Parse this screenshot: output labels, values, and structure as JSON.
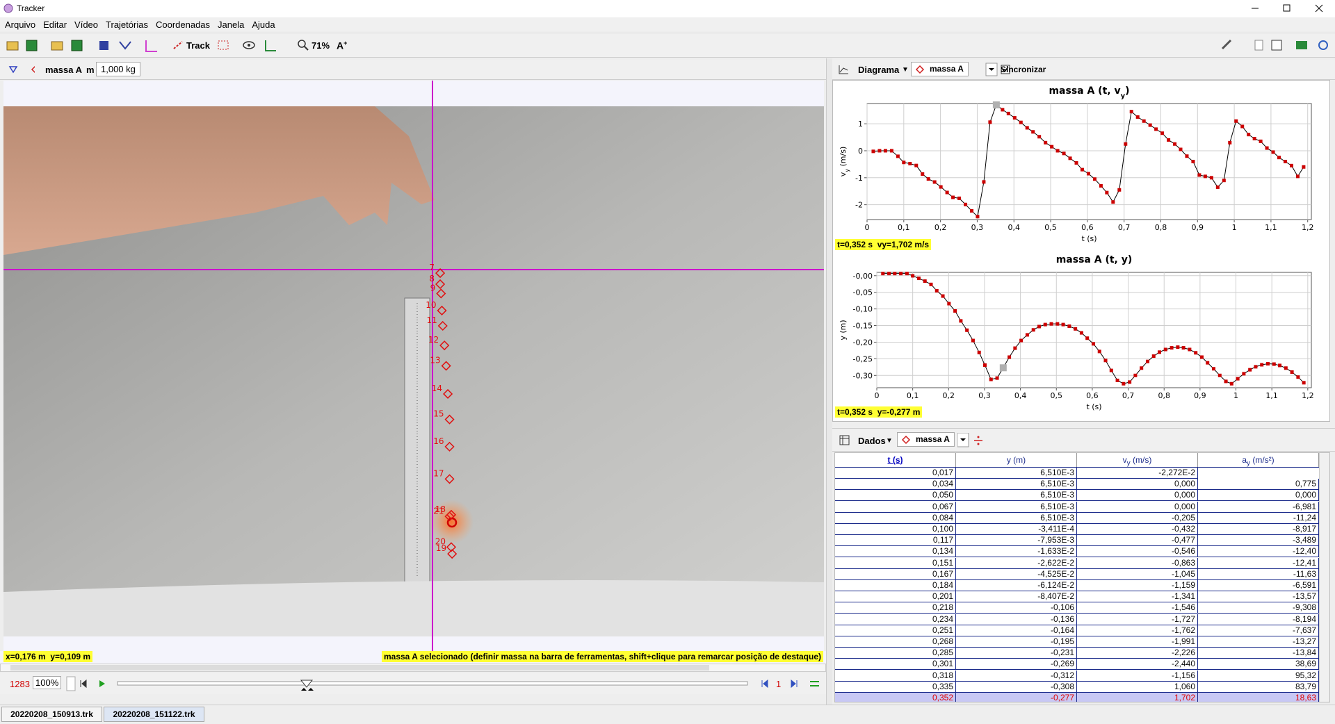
{
  "window": {
    "title": "Tracker"
  },
  "menu": [
    "Arquivo",
    "Editar",
    "Vídeo",
    "Trajetórias",
    "Coordenadas",
    "Janela",
    "Ajuda"
  ],
  "toolbar": {
    "track": "Track",
    "zoom": "71%"
  },
  "track_bar": {
    "track": "massa A",
    "mass_label": "m",
    "mass": "1,000 kg"
  },
  "video": {
    "point_labels": [
      "7",
      "8",
      "9",
      "10",
      "11",
      "12",
      "13",
      "14",
      "15",
      "16",
      "17",
      "18",
      "19",
      "20",
      "21"
    ]
  },
  "status": {
    "coords": "x=0,176 m  y=0,109 m",
    "message": "massa A selecionado (definir massa na barra de ferramentas, shift+clique para remarcar posição de destaque)"
  },
  "player": {
    "frame": "1283",
    "rate": "100%",
    "step": "1"
  },
  "tabs": [
    "20220208_150913.trk",
    "20220208_151122.trk"
  ],
  "plot_panel": {
    "view": "Diagrama",
    "track": "massa A",
    "sync": "Sincronizar"
  },
  "plots": [
    {
      "type": "line",
      "title": [
        "massa A (t, v",
        "y",
        ")"
      ],
      "x_label": "t (s)",
      "y_label": [
        "v",
        "y",
        " (m/s)"
      ],
      "readout": "t=0,352 s  vy=1,702 m/s",
      "color": "#cc0000",
      "line_color": "#000000",
      "grid": true,
      "xlim": [
        0,
        1.21
      ],
      "ylim": [
        -2.55,
        1.75
      ],
      "xticks": [
        0,
        {
          "value": 0.1,
          "label": "0,1"
        },
        {
          "value": 0.2,
          "label": "0,2"
        },
        {
          "value": 0.3,
          "label": "0,3"
        },
        {
          "value": 0.4,
          "label": "0,4"
        },
        {
          "value": 0.5,
          "label": "0,5"
        },
        {
          "value": 0.6,
          "label": "0,6"
        },
        {
          "value": 0.7,
          "label": "0,7"
        },
        {
          "value": 0.8,
          "label": "0,8"
        },
        {
          "value": 0.9,
          "label": "0,9"
        },
        1,
        {
          "value": 1.1,
          "label": "1,1"
        },
        {
          "value": 1.2,
          "label": "1,2"
        }
      ],
      "yticks": [
        1,
        0,
        -1,
        -2
      ],
      "x": [
        0.017,
        0.034,
        0.05,
        0.067,
        0.084,
        0.1,
        0.117,
        0.134,
        0.151,
        0.167,
        0.184,
        0.201,
        0.218,
        0.234,
        0.251,
        0.268,
        0.285,
        0.301,
        0.318,
        0.335,
        0.352,
        0.369,
        0.385,
        0.402,
        0.419,
        0.436,
        0.452,
        0.469,
        0.486,
        0.503,
        0.519,
        0.536,
        0.553,
        0.57,
        0.586,
        0.603,
        0.62,
        0.637,
        0.653,
        0.67,
        0.687,
        0.704,
        0.72,
        0.737,
        0.754,
        0.771,
        0.787,
        0.804,
        0.821,
        0.838,
        0.854,
        0.871,
        0.888,
        0.905,
        0.921,
        0.938,
        0.955,
        0.972,
        0.988,
        1.005,
        1.022,
        1.039,
        1.055,
        1.072,
        1.089,
        1.106,
        1.122,
        1.139,
        1.156,
        1.173,
        1.189
      ],
      "values": [
        -0.02272,
        0,
        0,
        0,
        -0.205,
        -0.432,
        -0.477,
        -0.546,
        -0.863,
        -1.045,
        -1.159,
        -1.341,
        -1.546,
        -1.727,
        -1.762,
        -1.991,
        -2.226,
        -2.44,
        -1.156,
        1.06,
        1.702,
        1.52,
        1.38,
        1.22,
        1.05,
        0.85,
        0.7,
        0.52,
        0.3,
        0.15,
        0,
        -0.1,
        -0.28,
        -0.45,
        -0.7,
        -0.85,
        -1.05,
        -1.3,
        -1.55,
        -1.9,
        -1.45,
        0.25,
        1.45,
        1.25,
        1.1,
        0.95,
        0.8,
        0.65,
        0.4,
        0.25,
        0.05,
        -0.2,
        -0.4,
        -0.9,
        -0.95,
        -1.0,
        -1.35,
        -1.1,
        0.3,
        1.1,
        0.9,
        0.6,
        0.45,
        0.35,
        0.1,
        -0.05,
        -0.25,
        -0.4,
        -0.55,
        -0.95,
        -0.6
      ],
      "selected": 20
    },
    {
      "type": "line",
      "title": [
        "massa A (t, y)"
      ],
      "x_label": "t (s)",
      "y_label": [
        "y (m)"
      ],
      "readout": "t=0,352 s  y=-0,277 m",
      "color": "#cc0000",
      "line_color": "#000000",
      "grid": true,
      "xlim": [
        0,
        1.21
      ],
      "ylim": [
        -0.337,
        0.01
      ],
      "xticks": [
        0,
        {
          "value": 0.1,
          "label": "0,1"
        },
        {
          "value": 0.2,
          "label": "0,2"
        },
        {
          "value": 0.3,
          "label": "0,3"
        },
        {
          "value": 0.4,
          "label": "0,4"
        },
        {
          "value": 0.5,
          "label": "0,5"
        },
        {
          "value": 0.6,
          "label": "0,6"
        },
        {
          "value": 0.7,
          "label": "0,7"
        },
        {
          "value": 0.8,
          "label": "0,8"
        },
        {
          "value": 0.9,
          "label": "0,9"
        },
        1,
        {
          "value": 1.1,
          "label": "1,1"
        },
        {
          "value": 1.2,
          "label": "1,2"
        }
      ],
      "yticks": [
        {
          "value": 0,
          "label": "-0,00"
        },
        {
          "value": -0.05,
          "label": "-0,05"
        },
        {
          "value": -0.1,
          "label": "-0,10"
        },
        {
          "value": -0.15,
          "label": "-0,15"
        },
        {
          "value": -0.2,
          "label": "-0,20"
        },
        {
          "value": -0.25,
          "label": "-0,25"
        },
        {
          "value": -0.3,
          "label": "-0,30"
        }
      ],
      "x": [
        0.017,
        0.034,
        0.05,
        0.067,
        0.084,
        0.1,
        0.117,
        0.134,
        0.151,
        0.167,
        0.184,
        0.201,
        0.218,
        0.234,
        0.251,
        0.268,
        0.285,
        0.301,
        0.318,
        0.335,
        0.352,
        0.369,
        0.385,
        0.402,
        0.419,
        0.436,
        0.452,
        0.469,
        0.486,
        0.503,
        0.519,
        0.536,
        0.553,
        0.57,
        0.586,
        0.603,
        0.62,
        0.637,
        0.653,
        0.67,
        0.687,
        0.704,
        0.72,
        0.737,
        0.754,
        0.771,
        0.787,
        0.804,
        0.821,
        0.838,
        0.854,
        0.871,
        0.888,
        0.905,
        0.921,
        0.938,
        0.955,
        0.972,
        0.988,
        1.005,
        1.022,
        1.039,
        1.055,
        1.072,
        1.089,
        1.106,
        1.122,
        1.139,
        1.156,
        1.173,
        1.189
      ],
      "values": [
        0.00651,
        0.00651,
        0.00651,
        0.00651,
        0.00651,
        -0.0003411,
        -0.007953,
        -0.01633,
        -0.02622,
        -0.04525,
        -0.06124,
        -0.08407,
        -0.106,
        -0.136,
        -0.164,
        -0.195,
        -0.231,
        -0.269,
        -0.312,
        -0.308,
        -0.277,
        -0.245,
        -0.218,
        -0.195,
        -0.178,
        -0.163,
        -0.153,
        -0.147,
        -0.145,
        -0.145,
        -0.147,
        -0.152,
        -0.16,
        -0.172,
        -0.188,
        -0.205,
        -0.228,
        -0.255,
        -0.285,
        -0.315,
        -0.325,
        -0.32,
        -0.3,
        -0.278,
        -0.258,
        -0.242,
        -0.23,
        -0.222,
        -0.217,
        -0.215,
        -0.217,
        -0.222,
        -0.232,
        -0.245,
        -0.262,
        -0.28,
        -0.3,
        -0.318,
        -0.325,
        -0.31,
        -0.295,
        -0.283,
        -0.274,
        -0.268,
        -0.265,
        -0.266,
        -0.27,
        -0.278,
        -0.29,
        -0.305,
        -0.322
      ],
      "selected": 20
    }
  ],
  "table_panel": {
    "view": "Dados",
    "track": "massa A"
  },
  "table": {
    "headers": [
      [
        "t (s)"
      ],
      [
        "y (m)"
      ],
      [
        "v",
        "y",
        " (m/s)"
      ],
      [
        "a",
        "y",
        " (m/s²)"
      ]
    ],
    "rows": [
      [
        "0,017",
        "6,510E-3",
        "-2,272E-2"
      ],
      [
        "0,034",
        "6,510E-3",
        "0,000",
        "0,775"
      ],
      [
        "0,050",
        "6,510E-3",
        "0,000",
        "0,000"
      ],
      [
        "0,067",
        "6,510E-3",
        "0,000",
        "-6,981"
      ],
      [
        "0,084",
        "6,510E-3",
        "-0,205",
        "-11,24"
      ],
      [
        "0,100",
        "-3,411E-4",
        "-0,432",
        "-8,917"
      ],
      [
        "0,117",
        "-7,953E-3",
        "-0,477",
        "-3,489"
      ],
      [
        "0,134",
        "-1,633E-2",
        "-0,546",
        "-12,40"
      ],
      [
        "0,151",
        "-2,622E-2",
        "-0,863",
        "-12,41"
      ],
      [
        "0,167",
        "-4,525E-2",
        "-1,045",
        "-11,63"
      ],
      [
        "0,184",
        "-6,124E-2",
        "-1,159",
        "-6,591"
      ],
      [
        "0,201",
        "-8,407E-2",
        "-1,341",
        "-13,57"
      ],
      [
        "0,218",
        "-0,106",
        "-1,546",
        "-9,308"
      ],
      [
        "0,234",
        "-0,136",
        "-1,727",
        "-8,194"
      ],
      [
        "0,251",
        "-0,164",
        "-1,762",
        "-7,637"
      ],
      [
        "0,268",
        "-0,195",
        "-1,991",
        "-13,27"
      ],
      [
        "0,285",
        "-0,231",
        "-2,226",
        "-13,84"
      ],
      [
        "0,301",
        "-0,269",
        "-2,440",
        "38,69"
      ],
      [
        "0,318",
        "-0,312",
        "-1,156",
        "95,32"
      ],
      [
        "0,335",
        "-0,308",
        "1,060",
        "83,79"
      ],
      [
        "0,352",
        "-0,277",
        "1,702",
        "18,63"
      ]
    ],
    "selected_row": 20
  }
}
